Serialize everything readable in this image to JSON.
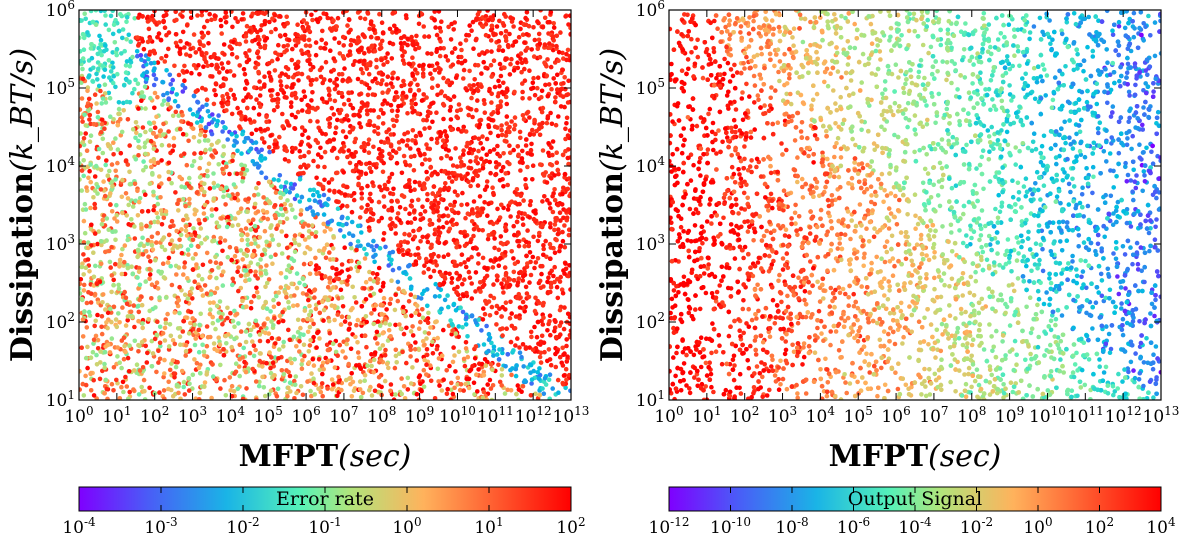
{
  "chart_data": [
    {
      "type": "scatter",
      "xlabel_main": "MFPT",
      "xlabel_unit": "(sec)",
      "ylabel_main": "Dissipation",
      "ylabel_unit": "(k_BT/s)",
      "xscale": "log",
      "yscale": "log",
      "xlim": [
        1,
        10000000000000.0
      ],
      "ylim": [
        10,
        1000000.0
      ],
      "x_ticks": [
        "10^0",
        "10^1",
        "10^2",
        "10^3",
        "10^4",
        "10^5",
        "10^6",
        "10^7",
        "10^8",
        "10^9",
        "10^10",
        "10^11",
        "10^12",
        "10^13"
      ],
      "y_ticks": [
        "10^1",
        "10^2",
        "10^3",
        "10^4",
        "10^5",
        "10^6"
      ],
      "colorbar": {
        "label": "Error rate",
        "scale": "log",
        "range": [
          0.0001,
          100.0
        ],
        "ticks": [
          "10^-4",
          "10^-3",
          "10^-2",
          "10^-1",
          "10^0",
          "10^1",
          "10^2"
        ]
      },
      "pattern": "high error (red) above diagonal boundary log10(D)=6-0.4*log10(MFPT); low error (blue/cyan) along boundary; mixed below"
    },
    {
      "type": "scatter",
      "xlabel_main": "MFPT",
      "xlabel_unit": "(sec)",
      "ylabel_main": "Dissipation",
      "ylabel_unit": "(k_BT/s)",
      "xscale": "log",
      "yscale": "log",
      "xlim": [
        1,
        10000000000000.0
      ],
      "ylim": [
        10,
        1000000.0
      ],
      "x_ticks": [
        "10^0",
        "10^1",
        "10^2",
        "10^3",
        "10^4",
        "10^5",
        "10^6",
        "10^7",
        "10^8",
        "10^9",
        "10^10",
        "10^11",
        "10^12",
        "10^13"
      ],
      "y_ticks": [
        "10^1",
        "10^2",
        "10^3",
        "10^4",
        "10^5",
        "10^6"
      ],
      "colorbar": {
        "label": "Output Signal",
        "scale": "log",
        "range": [
          1e-12,
          10000.0
        ],
        "ticks": [
          "10^-12",
          "10^-10",
          "10^-8",
          "10^-6",
          "10^-4",
          "10^-2",
          "10^0",
          "10^2",
          "10^4"
        ]
      },
      "pattern": "high output (red) at short MFPT near boundary; decreasing toward blue at long MFPT"
    }
  ],
  "colors": {
    "colormap": [
      "#7f00ff",
      "#4169f5",
      "#00bfe0",
      "#5ef0b5",
      "#b5e27a",
      "#ffb35e",
      "#ff5a2e",
      "#ff0000"
    ]
  }
}
